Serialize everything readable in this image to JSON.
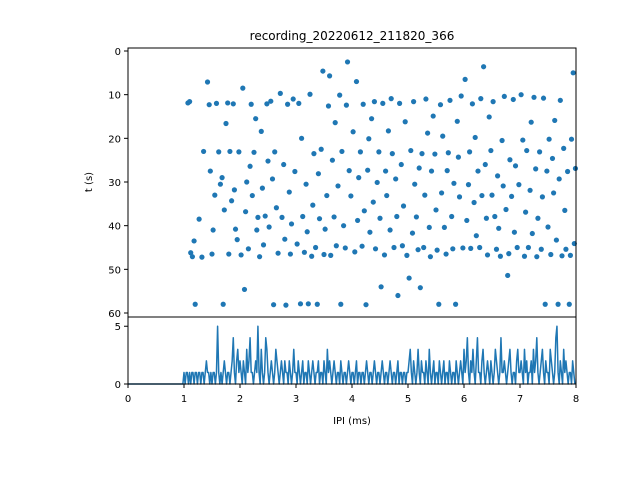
{
  "chart_data": [
    {
      "type": "scatter",
      "title": "recording_20220612_211820_366",
      "xlabel": "",
      "ylabel": "t (s)",
      "xlim": [
        0,
        8
      ],
      "ylim": [
        60,
        0
      ],
      "y_inverted": true,
      "yticks": [
        "0",
        "10",
        "20",
        "30",
        "40",
        "50",
        "60"
      ],
      "grid": false,
      "color": "#1f77b4",
      "points": [
        [
          1.07,
          11.9
        ],
        [
          1.1,
          11.6
        ],
        [
          1.12,
          46.2
        ],
        [
          1.15,
          47.1
        ],
        [
          1.18,
          43.5
        ],
        [
          1.2,
          58.0
        ],
        [
          1.27,
          38.5
        ],
        [
          1.32,
          47.2
        ],
        [
          1.35,
          23.0
        ],
        [
          1.42,
          7.1
        ],
        [
          1.45,
          12.3
        ],
        [
          1.47,
          27.5
        ],
        [
          1.5,
          46.5
        ],
        [
          1.52,
          41.0
        ],
        [
          1.55,
          33.0
        ],
        [
          1.58,
          12.0
        ],
        [
          1.62,
          23.1
        ],
        [
          1.65,
          30.5
        ],
        [
          1.68,
          29.0
        ],
        [
          1.7,
          58.0
        ],
        [
          1.72,
          36.4
        ],
        [
          1.75,
          16.6
        ],
        [
          1.78,
          11.9
        ],
        [
          1.8,
          46.5
        ],
        [
          1.82,
          23.0
        ],
        [
          1.85,
          34.3
        ],
        [
          1.88,
          12.1
        ],
        [
          1.9,
          31.8
        ],
        [
          1.92,
          40.8
        ],
        [
          1.95,
          43.2
        ],
        [
          1.98,
          23.1
        ],
        [
          2.02,
          46.7
        ],
        [
          2.05,
          8.5
        ],
        [
          2.08,
          54.6
        ],
        [
          2.1,
          36.8
        ],
        [
          2.12,
          30.0
        ],
        [
          2.15,
          45.3
        ],
        [
          2.18,
          26.4
        ],
        [
          2.2,
          12.2
        ],
        [
          2.22,
          33.1
        ],
        [
          2.25,
          23.2
        ],
        [
          2.28,
          15.5
        ],
        [
          2.3,
          41.0
        ],
        [
          2.32,
          38.1
        ],
        [
          2.35,
          47.1
        ],
        [
          2.38,
          18.4
        ],
        [
          2.4,
          31.4
        ],
        [
          2.42,
          44.4
        ],
        [
          2.45,
          37.8
        ],
        [
          2.48,
          12.1
        ],
        [
          2.5,
          25.2
        ],
        [
          2.52,
          40.3
        ],
        [
          2.55,
          11.5
        ],
        [
          2.58,
          29.3
        ],
        [
          2.6,
          58.1
        ],
        [
          2.62,
          23.1
        ],
        [
          2.65,
          35.9
        ],
        [
          2.68,
          46.3
        ],
        [
          2.72,
          9.7
        ],
        [
          2.75,
          38.1
        ],
        [
          2.78,
          26.0
        ],
        [
          2.8,
          43.1
        ],
        [
          2.82,
          58.2
        ],
        [
          2.85,
          12.2
        ],
        [
          2.88,
          32.3
        ],
        [
          2.9,
          46.5
        ],
        [
          2.92,
          39.6
        ],
        [
          2.95,
          11.0
        ],
        [
          2.98,
          27.6
        ],
        [
          3.02,
          44.2
        ],
        [
          3.05,
          12.0
        ],
        [
          3.08,
          57.9
        ],
        [
          3.1,
          20.0
        ],
        [
          3.12,
          37.9
        ],
        [
          3.15,
          46.1
        ],
        [
          3.18,
          30.5
        ],
        [
          3.2,
          41.4
        ],
        [
          3.22,
          57.9
        ],
        [
          3.25,
          9.9
        ],
        [
          3.28,
          47.0
        ],
        [
          3.3,
          35.3
        ],
        [
          3.32,
          23.5
        ],
        [
          3.35,
          45.0
        ],
        [
          3.38,
          58.0
        ],
        [
          3.4,
          28.1
        ],
        [
          3.42,
          38.4
        ],
        [
          3.45,
          22.5
        ],
        [
          3.48,
          4.6
        ],
        [
          3.5,
          46.6
        ],
        [
          3.52,
          40.8
        ],
        [
          3.55,
          33.1
        ],
        [
          3.58,
          12.6
        ],
        [
          3.6,
          5.7
        ],
        [
          3.62,
          46.8
        ],
        [
          3.65,
          25.0
        ],
        [
          3.68,
          38.0
        ],
        [
          3.7,
          16.4
        ],
        [
          3.72,
          44.6
        ],
        [
          3.75,
          30.9
        ],
        [
          3.78,
          10.1
        ],
        [
          3.8,
          58.0
        ],
        [
          3.82,
          23.0
        ],
        [
          3.85,
          40.0
        ],
        [
          3.88,
          45.1
        ],
        [
          3.9,
          12.4
        ],
        [
          3.92,
          2.5
        ],
        [
          3.95,
          27.4
        ],
        [
          3.98,
          33.2
        ],
        [
          4.02,
          18.5
        ],
        [
          4.05,
          46.0
        ],
        [
          4.08,
          7.0
        ],
        [
          4.1,
          38.8
        ],
        [
          4.12,
          29.0
        ],
        [
          4.15,
          23.1
        ],
        [
          4.18,
          44.7
        ],
        [
          4.2,
          12.2
        ],
        [
          4.22,
          36.6
        ],
        [
          4.25,
          58.1
        ],
        [
          4.28,
          27.3
        ],
        [
          4.3,
          20.1
        ],
        [
          4.32,
          41.5
        ],
        [
          4.35,
          15.5
        ],
        [
          4.38,
          34.6
        ],
        [
          4.4,
          11.6
        ],
        [
          4.42,
          45.3
        ],
        [
          4.45,
          30.1
        ],
        [
          4.48,
          23.1
        ],
        [
          4.5,
          38.3
        ],
        [
          4.52,
          54.0
        ],
        [
          4.55,
          12.0
        ],
        [
          4.58,
          46.7
        ],
        [
          4.6,
          27.5
        ],
        [
          4.62,
          33.1
        ],
        [
          4.65,
          18.3
        ],
        [
          4.68,
          41.0
        ],
        [
          4.7,
          10.9
        ],
        [
          4.72,
          23.5
        ],
        [
          4.75,
          45.0
        ],
        [
          4.78,
          29.3
        ],
        [
          4.8,
          37.9
        ],
        [
          4.82,
          56.0
        ],
        [
          4.85,
          12.0
        ],
        [
          4.88,
          26.0
        ],
        [
          4.9,
          44.6
        ],
        [
          4.92,
          35.5
        ],
        [
          4.95,
          16.2
        ],
        [
          4.98,
          46.8
        ],
        [
          5.02,
          52.0
        ],
        [
          5.05,
          22.8
        ],
        [
          5.08,
          41.7
        ],
        [
          5.1,
          11.6
        ],
        [
          5.12,
          30.5
        ],
        [
          5.15,
          38.0
        ],
        [
          5.18,
          45.5
        ],
        [
          5.2,
          26.8
        ],
        [
          5.22,
          54.2
        ],
        [
          5.25,
          23.5
        ],
        [
          5.28,
          45.0
        ],
        [
          5.3,
          33.0
        ],
        [
          5.32,
          11.0
        ],
        [
          5.35,
          18.8
        ],
        [
          5.38,
          40.4
        ],
        [
          5.4,
          47.1
        ],
        [
          5.42,
          27.5
        ],
        [
          5.45,
          14.9
        ],
        [
          5.48,
          23.6
        ],
        [
          5.5,
          36.4
        ],
        [
          5.52,
          45.6
        ],
        [
          5.55,
          58.0
        ],
        [
          5.58,
          12.3
        ],
        [
          5.6,
          32.5
        ],
        [
          5.62,
          19.5
        ],
        [
          5.65,
          40.4
        ],
        [
          5.68,
          46.5
        ],
        [
          5.7,
          27.4
        ],
        [
          5.72,
          23.3
        ],
        [
          5.75,
          11.3
        ],
        [
          5.78,
          37.9
        ],
        [
          5.8,
          45.3
        ],
        [
          5.82,
          30.3
        ],
        [
          5.85,
          58.0
        ],
        [
          5.88,
          16.1
        ],
        [
          5.9,
          24.3
        ],
        [
          5.92,
          33.4
        ],
        [
          5.95,
          10.3
        ],
        [
          5.98,
          45.1
        ],
        [
          6.02,
          6.5
        ],
        [
          6.05,
          38.8
        ],
        [
          6.08,
          30.6
        ],
        [
          6.1,
          23.1
        ],
        [
          6.12,
          45.2
        ],
        [
          6.15,
          12.1
        ],
        [
          6.18,
          34.7
        ],
        [
          6.2,
          19.8
        ],
        [
          6.22,
          42.3
        ],
        [
          6.25,
          27.5
        ],
        [
          6.28,
          45.0
        ],
        [
          6.3,
          10.9
        ],
        [
          6.32,
          33.1
        ],
        [
          6.35,
          3.6
        ],
        [
          6.38,
          26.0
        ],
        [
          6.4,
          38.3
        ],
        [
          6.42,
          46.7
        ],
        [
          6.45,
          15.1
        ],
        [
          6.48,
          22.8
        ],
        [
          6.5,
          33.0
        ],
        [
          6.52,
          11.6
        ],
        [
          6.55,
          37.9
        ],
        [
          6.58,
          45.4
        ],
        [
          6.6,
          28.6
        ],
        [
          6.62,
          40.6
        ],
        [
          6.65,
          47.0
        ],
        [
          6.68,
          20.5
        ],
        [
          6.7,
          30.9
        ],
        [
          6.72,
          10.4
        ],
        [
          6.75,
          36.3
        ],
        [
          6.78,
          51.4
        ],
        [
          6.8,
          46.4
        ],
        [
          6.82,
          24.9
        ],
        [
          6.85,
          33.3
        ],
        [
          6.88,
          11.1
        ],
        [
          6.9,
          41.5
        ],
        [
          6.92,
          26.3
        ],
        [
          6.95,
          45.0
        ],
        [
          6.98,
          30.6
        ],
        [
          7.02,
          10.0
        ],
        [
          7.05,
          20.4
        ],
        [
          7.08,
          47.0
        ],
        [
          7.1,
          36.9
        ],
        [
          7.12,
          22.8
        ],
        [
          7.15,
          45.0
        ],
        [
          7.18,
          31.9
        ],
        [
          7.2,
          16.3
        ],
        [
          7.22,
          41.8
        ],
        [
          7.25,
          10.6
        ],
        [
          7.28,
          27.0
        ],
        [
          7.3,
          47.1
        ],
        [
          7.32,
          38.3
        ],
        [
          7.35,
          23.1
        ],
        [
          7.38,
          45.4
        ],
        [
          7.4,
          33.4
        ],
        [
          7.42,
          10.8
        ],
        [
          7.45,
          58.0
        ],
        [
          7.48,
          27.5
        ],
        [
          7.5,
          40.3
        ],
        [
          7.52,
          20.2
        ],
        [
          7.55,
          46.6
        ],
        [
          7.58,
          24.6
        ],
        [
          7.6,
          32.5
        ],
        [
          7.62,
          15.9
        ],
        [
          7.65,
          43.3
        ],
        [
          7.68,
          58.0
        ],
        [
          7.7,
          29.3
        ],
        [
          7.72,
          11.3
        ],
        [
          7.75,
          46.9
        ],
        [
          7.78,
          22.3
        ],
        [
          7.8,
          36.5
        ],
        [
          7.82,
          45.4
        ],
        [
          7.85,
          27.6
        ],
        [
          7.88,
          58.0
        ],
        [
          7.9,
          46.8
        ],
        [
          7.92,
          20.2
        ],
        [
          7.95,
          5.0
        ],
        [
          7.97,
          44.1
        ],
        [
          7.99,
          26.9
        ]
      ]
    },
    {
      "type": "line",
      "title": "",
      "xlabel": "IPI (ms)",
      "ylabel": "",
      "xlim": [
        0,
        8
      ],
      "ylim": [
        0,
        5.8
      ],
      "xticks": [
        "0",
        "1",
        "2",
        "3",
        "4",
        "5",
        "6",
        "7",
        "8"
      ],
      "yticks": [
        "0",
        "5"
      ],
      "grid": false,
      "color": "#1f77b4",
      "x_start": 0,
      "x_step": 0.02,
      "values": [
        0,
        0,
        0,
        0,
        0,
        0,
        0,
        0,
        0,
        0,
        0,
        0,
        0,
        0,
        0,
        0,
        0,
        0,
        0,
        0,
        0,
        0,
        0,
        0,
        0,
        0,
        0,
        0,
        0,
        0,
        0,
        0,
        0,
        0,
        0,
        0,
        0,
        0,
        0,
        0,
        0,
        0,
        0,
        0,
        0,
        0,
        0,
        0,
        0,
        0,
        1,
        0,
        1,
        1,
        0,
        1,
        0,
        1,
        1,
        0,
        1,
        1,
        0,
        1,
        1,
        0,
        1,
        1,
        0,
        1,
        2,
        1,
        1,
        0,
        1,
        0,
        1,
        1,
        0,
        1,
        5,
        1,
        0,
        1,
        0,
        1,
        2,
        1,
        0,
        1,
        1,
        0,
        1,
        2,
        4,
        1,
        0,
        2,
        3,
        1,
        2,
        1,
        0,
        2,
        1,
        0,
        3,
        1,
        2,
        4,
        1,
        1,
        0,
        1,
        2,
        1,
        5,
        1,
        0,
        3,
        1,
        0,
        1,
        4,
        3,
        1,
        0,
        1,
        2,
        1,
        0,
        1,
        3,
        2,
        1,
        0,
        1,
        2,
        1,
        0,
        2,
        1,
        1,
        0,
        2,
        1,
        0,
        1,
        3,
        1,
        1,
        0,
        2,
        1,
        0,
        1,
        2,
        0,
        1,
        1,
        0,
        2,
        1,
        0,
        1,
        2,
        1,
        0,
        1,
        1,
        2,
        0,
        1,
        1,
        0,
        2,
        1,
        0,
        3,
        1,
        2,
        1,
        0,
        1,
        2,
        1,
        0,
        1,
        1,
        0,
        2,
        1,
        0,
        1,
        1,
        0,
        1,
        2,
        1,
        0,
        1,
        1,
        0,
        1,
        2,
        0,
        1,
        1,
        0,
        1,
        1,
        0,
        1,
        2,
        1,
        0,
        1,
        1,
        0,
        1,
        2,
        1,
        0,
        1,
        1,
        0,
        1,
        2,
        1,
        0,
        1,
        1,
        0,
        1,
        2,
        1,
        0,
        1,
        1,
        0,
        1,
        2,
        0,
        1,
        1,
        0,
        1,
        1,
        0,
        1,
        1,
        2,
        3,
        1,
        0,
        2,
        1,
        0,
        1,
        3,
        1,
        0,
        2,
        1,
        1,
        0,
        2,
        1,
        0,
        3,
        1,
        0,
        1,
        2,
        0,
        1,
        1,
        0,
        2,
        1,
        0,
        1,
        2,
        0,
        1,
        1,
        0,
        2,
        1,
        0,
        1,
        1,
        0,
        2,
        1,
        0,
        1,
        2,
        1,
        0,
        3,
        1,
        2,
        4,
        1,
        0,
        2,
        1,
        3,
        1,
        0,
        2,
        4,
        1,
        1,
        0,
        2,
        3,
        1,
        0,
        1,
        2,
        1,
        0,
        2,
        1,
        0,
        1,
        3,
        2,
        1,
        0,
        1,
        4,
        1,
        1,
        2,
        1,
        0,
        1,
        2,
        3,
        1,
        0,
        1,
        1,
        0,
        2,
        3,
        1,
        1,
        2,
        1,
        0,
        3,
        1,
        2,
        0,
        1,
        1,
        2,
        0,
        3,
        1,
        2,
        4,
        1,
        0,
        1,
        2,
        3,
        1,
        0,
        2,
        1,
        1,
        0,
        3,
        2,
        1,
        0,
        1,
        4,
        5,
        1,
        0,
        2,
        1,
        0,
        3,
        1,
        2,
        1,
        0,
        1,
        1,
        0,
        2,
        1,
        0
      ]
    }
  ]
}
